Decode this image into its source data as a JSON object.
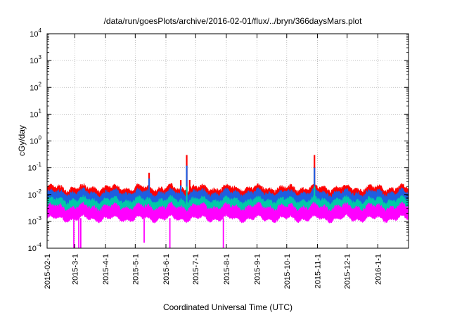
{
  "chart_data": {
    "type": "area",
    "title": "/data/run/goesPlots/archive/2016-02-01/flux/../bryn/366daysMars.plot",
    "xlabel": "Coordinated Universal Time (UTC)",
    "ylabel": "cGy/day",
    "yscale": "log",
    "ylim": [
      0.0001,
      10000
    ],
    "xlim": [
      "2015-02-01",
      "2016-02-01"
    ],
    "grid": true,
    "x_ticks": [
      "2015-02-1",
      "2015-3-1",
      "2015-4-1",
      "2015-5-1",
      "2015-6-1",
      "2015-7-1",
      "2015-8-1",
      "2015-9-1",
      "2015-10-1",
      "2015-11-1",
      "2015-12-1",
      "2016-1-1"
    ],
    "y_ticks": [
      {
        "base": "10",
        "exp": "-4",
        "value": 0.0001
      },
      {
        "base": "10",
        "exp": "-3",
        "value": 0.001
      },
      {
        "base": "10",
        "exp": "-2",
        "value": 0.01
      },
      {
        "base": "10",
        "exp": "-1",
        "value": 0.1
      },
      {
        "base": "10",
        "exp": "0",
        "value": 1
      },
      {
        "base": "10",
        "exp": "1",
        "value": 10
      },
      {
        "base": "10",
        "exp": "2",
        "value": 100
      },
      {
        "base": "10",
        "exp": "3",
        "value": 1000
      },
      {
        "base": "10",
        "exp": "4",
        "value": 10000
      }
    ],
    "series": [
      {
        "color": "#ff0000",
        "baseline": 0.011,
        "spikes": [
          {
            "date": "2015-05-15",
            "value": 0.065
          },
          {
            "date": "2015-06-22",
            "value": 0.3
          },
          {
            "date": "2015-06-16",
            "value": 0.035
          },
          {
            "date": "2015-06-25",
            "value": 0.035
          },
          {
            "date": "2015-10-29",
            "value": 0.3
          },
          {
            "date": "2016-01-04",
            "value": 0.022
          }
        ]
      },
      {
        "color": "#1e5ee0",
        "baseline": 0.0075,
        "spikes": [
          {
            "date": "2015-05-15",
            "value": 0.04
          },
          {
            "date": "2015-06-22",
            "value": 0.12
          },
          {
            "date": "2015-06-16",
            "value": 0.022
          },
          {
            "date": "2015-10-29",
            "value": 0.1
          }
        ]
      },
      {
        "color": "#00c9a8",
        "baseline": 0.004,
        "spikes": [
          {
            "date": "2015-06-22",
            "value": 0.02
          },
          {
            "date": "2015-10-29",
            "value": 0.02
          }
        ]
      },
      {
        "color": "#ff00ff",
        "baseline": 0.0022,
        "dips": [
          {
            "date": "2015-02-28",
            "value": 0.0001
          },
          {
            "date": "2015-03-05",
            "value": 0.0001
          },
          {
            "date": "2015-03-07",
            "value": 0.0001
          },
          {
            "date": "2015-05-10",
            "value": 0.00016
          },
          {
            "date": "2015-06-05",
            "value": 0.0001
          },
          {
            "date": "2015-07-29",
            "value": 0.0001
          }
        ]
      }
    ]
  }
}
